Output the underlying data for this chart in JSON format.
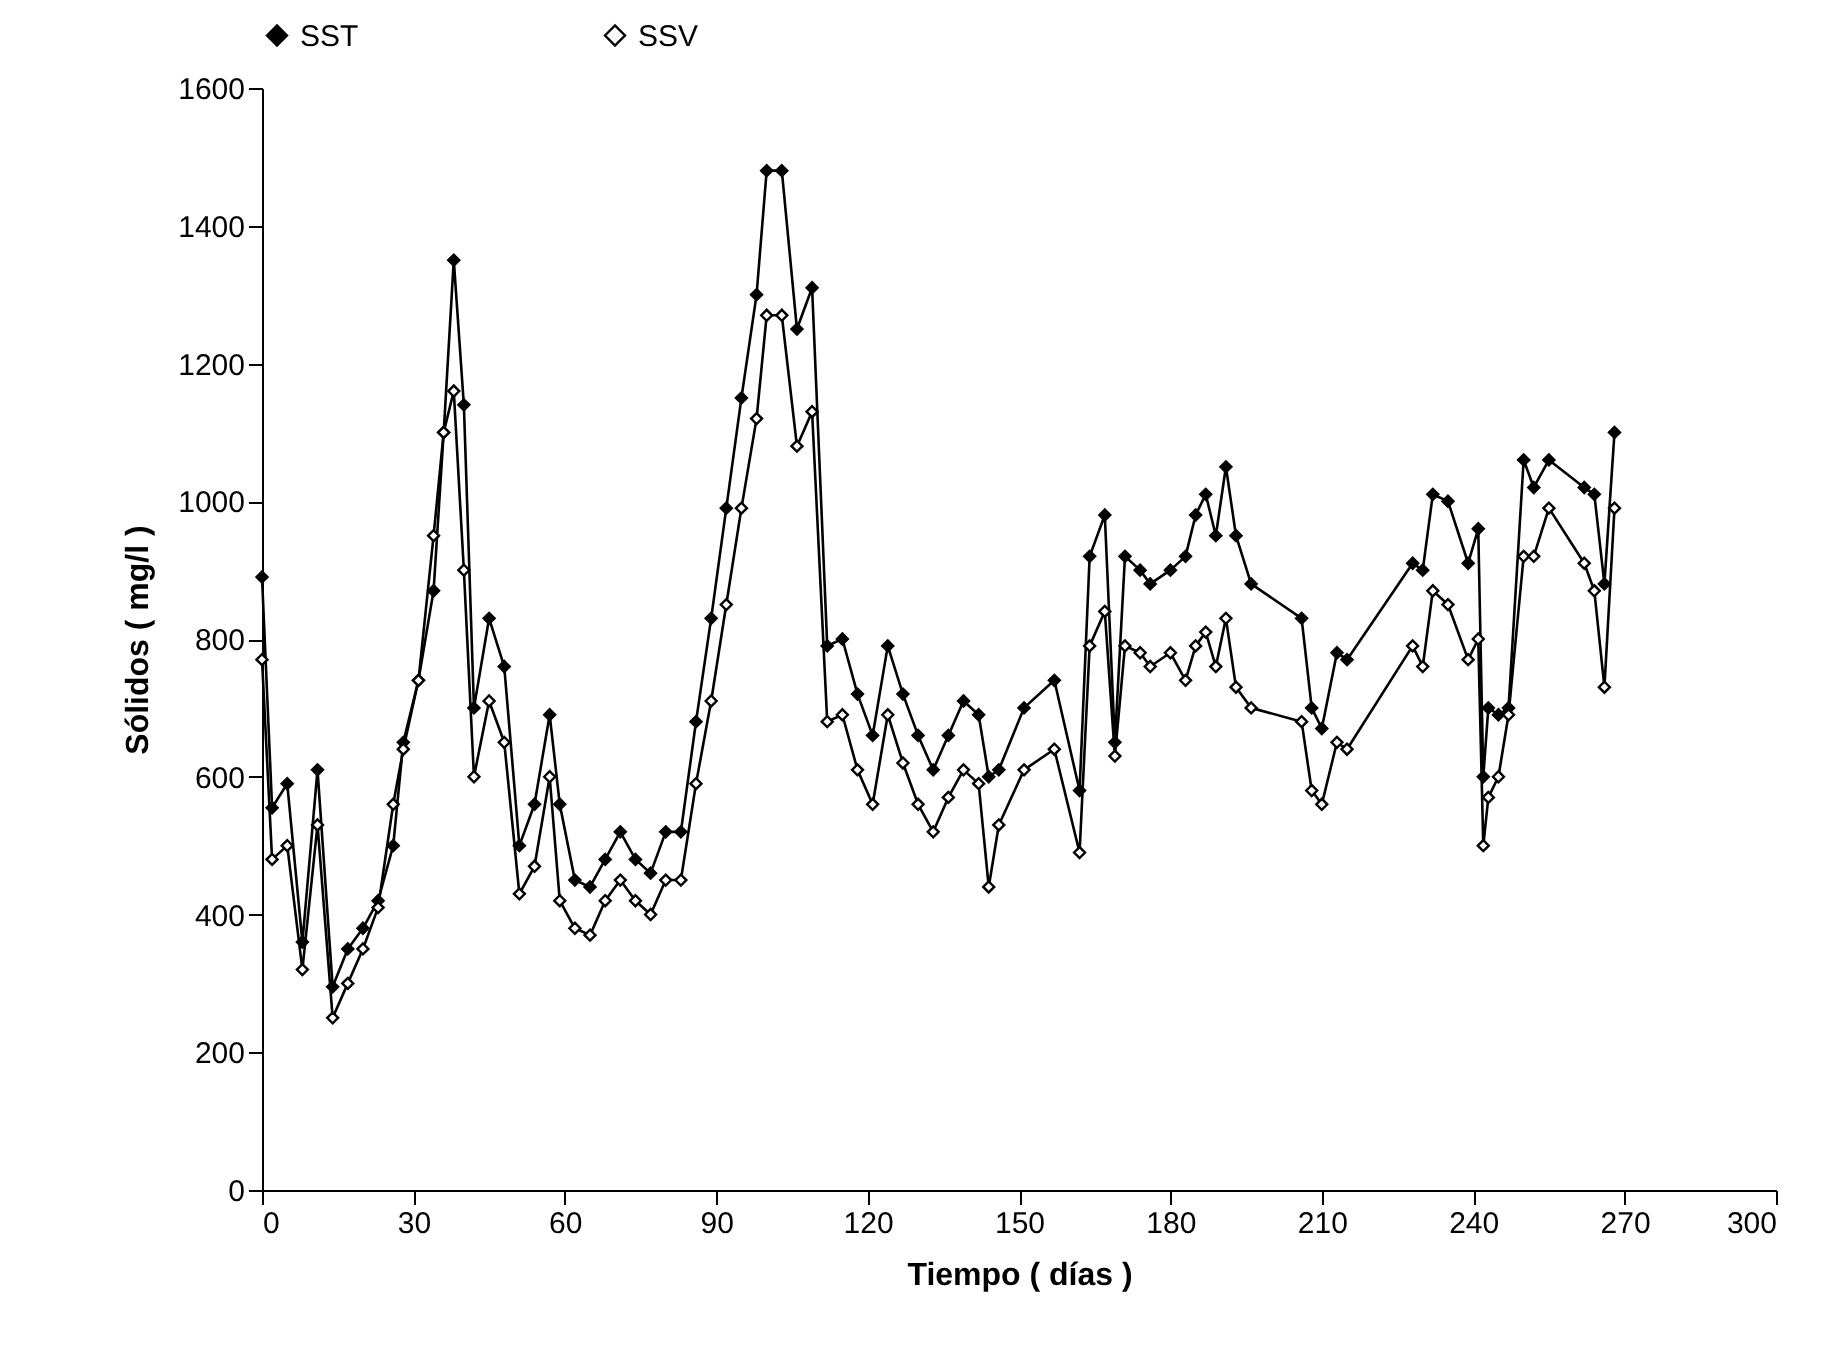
{
  "chart_data": {
    "type": "line",
    "xlabel": "Tiempo ( días )",
    "ylabel": "Sólidos ( mg/l )",
    "marker": "diamond",
    "legend": "top",
    "grid": false,
    "xlim": [
      0,
      300
    ],
    "xticks": [
      0,
      30,
      60,
      90,
      120,
      150,
      180,
      210,
      240,
      270,
      300
    ],
    "ylim": [
      0,
      1600
    ],
    "yticks": [
      0,
      200,
      400,
      600,
      800,
      1000,
      1200,
      1400,
      1600
    ],
    "x": [
      0,
      2,
      5,
      8,
      11,
      14,
      17,
      20,
      23,
      26,
      28,
      31,
      34,
      36,
      38,
      40,
      42,
      45,
      48,
      51,
      54,
      57,
      59,
      62,
      65,
      68,
      71,
      74,
      77,
      80,
      83,
      86,
      89,
      92,
      95,
      98,
      100,
      103,
      106,
      109,
      112,
      115,
      118,
      121,
      124,
      127,
      130,
      133,
      136,
      139,
      142,
      144,
      146,
      151,
      157,
      162,
      164,
      167,
      169,
      171,
      174,
      176,
      180,
      183,
      185,
      187,
      189,
      191,
      193,
      196,
      206,
      208,
      210,
      213,
      215,
      228,
      230,
      232,
      235,
      239,
      241,
      242,
      243,
      245,
      247,
      250,
      252,
      255,
      262,
      264,
      266,
      268
    ],
    "series": [
      {
        "name": "SST",
        "color": "#000000",
        "values": [
          890,
          555,
          590,
          360,
          610,
          295,
          350,
          380,
          420,
          500,
          650,
          740,
          870,
          1100,
          1350,
          1140,
          700,
          830,
          760,
          500,
          560,
          690,
          560,
          450,
          440,
          480,
          520,
          480,
          460,
          520,
          520,
          680,
          830,
          990,
          1150,
          1300,
          1480,
          1480,
          1250,
          1310,
          790,
          800,
          720,
          660,
          790,
          720,
          660,
          610,
          660,
          710,
          690,
          600,
          610,
          700,
          740,
          580,
          920,
          980,
          650,
          920,
          900,
          880,
          900,
          920,
          980,
          1010,
          950,
          1050,
          950,
          880,
          830,
          700,
          670,
          780,
          770,
          910,
          900,
          1010,
          1000,
          910,
          960,
          600,
          700,
          690,
          700,
          1060,
          1020,
          1060,
          1020,
          1010,
          880,
          1100
        ]
      },
      {
        "name": "SSV",
        "color": "#000000",
        "values": [
          770,
          480,
          500,
          320,
          530,
          250,
          300,
          350,
          410,
          560,
          640,
          740,
          950,
          1100,
          1160,
          900,
          600,
          710,
          650,
          430,
          470,
          600,
          420,
          380,
          370,
          420,
          450,
          420,
          400,
          450,
          450,
          590,
          710,
          850,
          990,
          1120,
          1270,
          1270,
          1080,
          1130,
          680,
          690,
          610,
          560,
          690,
          620,
          560,
          520,
          570,
          610,
          590,
          440,
          530,
          610,
          640,
          490,
          790,
          840,
          630,
          790,
          780,
          760,
          780,
          740,
          790,
          810,
          760,
          830,
          730,
          700,
          680,
          580,
          560,
          650,
          640,
          790,
          760,
          870,
          850,
          770,
          800,
          500,
          570,
          600,
          690,
          920,
          920,
          990,
          910,
          870,
          730,
          990
        ]
      }
    ]
  }
}
